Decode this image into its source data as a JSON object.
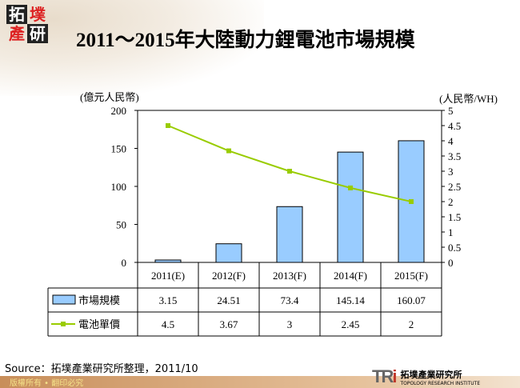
{
  "logo": {
    "chars": [
      "拓",
      "墣",
      "產",
      "研"
    ]
  },
  "title": "2011～2015年大陸動力鋰電池市場規模",
  "chart_data": {
    "type": "bar+line",
    "categories": [
      "2011(E)",
      "2012(F)",
      "2013(F)",
      "2014(F)",
      "2015(F)"
    ],
    "series": [
      {
        "name": "市場規模",
        "type": "bar",
        "axis": "left",
        "values": [
          3.15,
          24.51,
          73.4,
          145.14,
          160.07
        ],
        "color": "#99ccff"
      },
      {
        "name": "電池單價",
        "type": "line",
        "axis": "right",
        "values": [
          4.5,
          3.67,
          3,
          2.45,
          2
        ],
        "color": "#99cc00"
      }
    ],
    "ylabel_left": "(億元人民幣)",
    "ylabel_right": "(人民幣/WH)",
    "ylim_left": [
      0,
      200
    ],
    "yticks_left": [
      "0",
      "50",
      "100",
      "150",
      "200"
    ],
    "ylim_right": [
      0,
      5
    ],
    "yticks_right": [
      "0",
      "0.5",
      "1",
      "1.5",
      "2",
      "2.5",
      "3",
      "3.5",
      "4",
      "4.5",
      "5"
    ],
    "table": [
      [
        "3.15",
        "24.51",
        "73.4",
        "145.14",
        "160.07"
      ],
      [
        "4.5",
        "3.67",
        "3",
        "2.45",
        "2"
      ]
    ]
  },
  "source": "Source：拓墣產業研究所整理，2011/10",
  "footer": {
    "copyright": "版權所有 • 翻印必究",
    "brand_mark": "TR",
    "brand_i": "i",
    "brand_cn": "拓墣產業研究所",
    "brand_en": "TOPOLOGY RESEARCH INSTITUTE"
  }
}
